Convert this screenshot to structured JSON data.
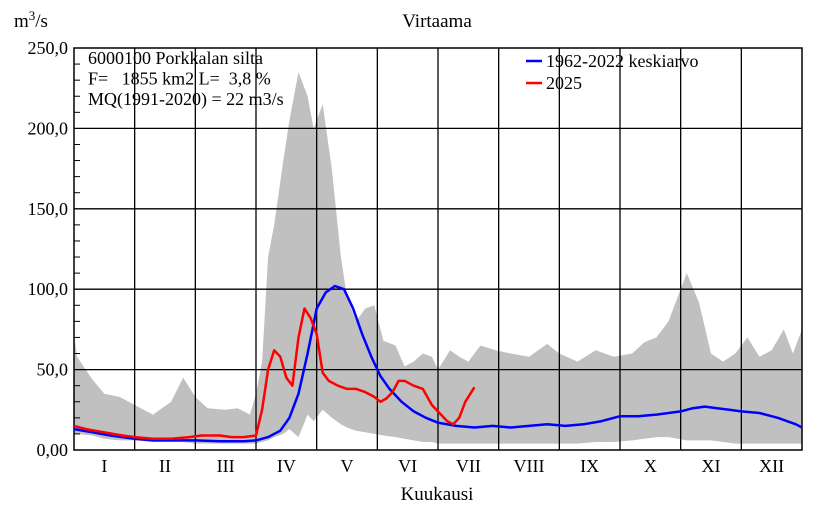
{
  "chart_data": {
    "type": "area",
    "title": "Virtaama",
    "ylabel": "m3/s",
    "xlabel": "Kuukausi",
    "ylim": [
      0,
      250
    ],
    "yticks": [
      "0,00",
      "50,0",
      "100,0",
      "150,0",
      "200,0",
      "250,0"
    ],
    "categories": [
      "I",
      "II",
      "III",
      "IV",
      "V",
      "VI",
      "VII",
      "VIII",
      "IX",
      "X",
      "XI",
      "XII"
    ],
    "grid": true,
    "legend_position": "top-right",
    "info_lines": [
      "6000100 Porkkalan silta",
      "F=   1855 km2 L=  3,8 %",
      "MQ(1991-2020) = 22 m3/s"
    ],
    "band": {
      "name": "",
      "color": "#c0c0c0",
      "x": [
        0,
        0.05,
        0.3,
        0.5,
        0.75,
        1.0,
        1.3,
        1.6,
        1.8,
        2.0,
        2.2,
        2.5,
        2.7,
        2.9,
        3.0,
        3.1,
        3.2,
        3.3,
        3.45,
        3.55,
        3.7,
        3.85,
        3.95,
        4.1,
        4.25,
        4.4,
        4.5,
        4.65,
        4.8,
        4.95,
        5.1,
        5.3,
        5.45,
        5.6,
        5.75,
        5.9,
        6.0,
        6.2,
        6.35,
        6.5,
        6.7,
        6.95,
        7.2,
        7.5,
        7.8,
        8.0,
        8.3,
        8.6,
        8.9,
        9.2,
        9.4,
        9.6,
        9.8,
        9.95,
        10.1,
        10.3,
        10.5,
        10.7,
        10.9,
        11.1,
        11.3,
        11.5,
        11.7,
        11.85,
        12.0
      ],
      "upper": [
        72,
        58,
        44,
        35,
        33,
        28,
        22,
        30,
        45,
        33,
        26,
        25,
        26,
        22,
        35,
        55,
        120,
        140,
        180,
        205,
        235,
        220,
        200,
        215,
        175,
        120,
        95,
        80,
        88,
        90,
        68,
        65,
        52,
        55,
        60,
        58,
        50,
        62,
        58,
        55,
        65,
        62,
        60,
        58,
        66,
        60,
        55,
        62,
        58,
        60,
        67,
        70,
        80,
        95,
        110,
        92,
        60,
        55,
        60,
        70,
        58,
        62,
        75,
        60,
        75
      ],
      "lower": [
        10,
        10,
        9,
        7,
        6,
        6,
        5,
        5,
        5,
        4,
        4,
        4,
        4,
        4,
        4,
        5,
        6,
        8,
        10,
        13,
        8,
        22,
        18,
        25,
        20,
        16,
        14,
        12,
        11,
        10,
        9,
        8,
        7,
        6,
        5,
        5,
        4,
        4,
        4,
        4,
        4,
        4,
        4,
        4,
        4,
        4,
        4,
        5,
        5,
        6,
        7,
        8,
        8,
        7,
        6,
        6,
        6,
        5,
        4,
        4,
        4,
        4,
        4,
        4,
        4
      ]
    },
    "series": [
      {
        "name": "1962-2022 keskiarvo",
        "color": "#0000ff",
        "x": [
          0,
          0.3,
          0.6,
          1.0,
          1.3,
          1.6,
          2.0,
          2.4,
          2.8,
          3.0,
          3.2,
          3.4,
          3.55,
          3.7,
          3.85,
          4.0,
          4.15,
          4.3,
          4.45,
          4.6,
          4.75,
          4.9,
          5.05,
          5.2,
          5.4,
          5.6,
          5.8,
          6.0,
          6.3,
          6.6,
          6.9,
          7.2,
          7.5,
          7.8,
          8.1,
          8.4,
          8.7,
          9.0,
          9.3,
          9.6,
          9.8,
          10.0,
          10.2,
          10.4,
          10.6,
          10.8,
          11.0,
          11.3,
          11.6,
          11.9,
          12.0
        ],
        "values": [
          13,
          11,
          9,
          7,
          6,
          6,
          6,
          5.5,
          5.5,
          6,
          8,
          12,
          20,
          35,
          60,
          88,
          98,
          102,
          100,
          88,
          72,
          58,
          46,
          38,
          30,
          24,
          20,
          17,
          15,
          14,
          15,
          14,
          15,
          16,
          15,
          16,
          18,
          21,
          21,
          22,
          23,
          24,
          26,
          27,
          26,
          25,
          24,
          23,
          20,
          16,
          14
        ]
      },
      {
        "name": "2025",
        "color": "#ff0000",
        "x": [
          0,
          0.2,
          0.5,
          0.8,
          1.0,
          1.3,
          1.6,
          1.9,
          2.1,
          2.4,
          2.6,
          2.8,
          3.0,
          3.1,
          3.2,
          3.3,
          3.4,
          3.5,
          3.6,
          3.7,
          3.8,
          3.9,
          4.0,
          4.1,
          4.2,
          4.35,
          4.5,
          4.65,
          4.8,
          4.95,
          5.05,
          5.15,
          5.25,
          5.35,
          5.45,
          5.6,
          5.75,
          5.9,
          6.05,
          6.15,
          6.25,
          6.35,
          6.45,
          6.6
        ],
        "values": [
          15,
          13,
          11,
          9,
          8,
          7,
          7,
          8,
          9,
          9,
          8,
          8,
          9,
          25,
          50,
          62,
          58,
          45,
          40,
          70,
          88,
          82,
          72,
          48,
          43,
          40,
          38,
          38,
          36,
          33,
          30,
          32,
          36,
          43,
          43,
          40,
          38,
          28,
          22,
          18,
          16,
          20,
          30,
          39
        ]
      }
    ]
  }
}
